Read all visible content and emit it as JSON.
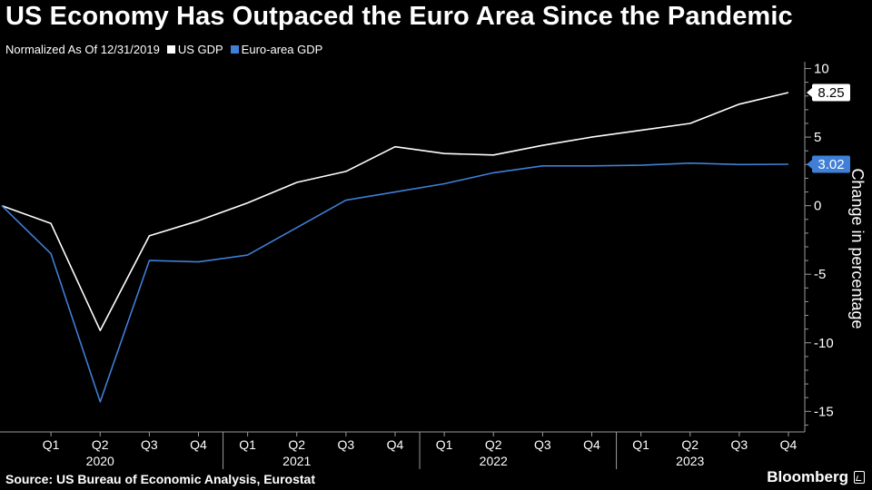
{
  "header": {
    "title": "US Economy Has Outpaced the Euro Area Since the Pandemic",
    "subtitle": "Normalized As Of 12/31/2019"
  },
  "legend": [
    {
      "name": "US GDP",
      "color": "#ffffff"
    },
    {
      "name": "Euro-area GDP",
      "color": "#3f7fd6"
    }
  ],
  "footer": {
    "source": "Source: US Bureau of Economic Analysis, Eurostat",
    "brand": "Bloomberg"
  },
  "chart_data": {
    "type": "line",
    "x": [
      "Q4 2019",
      "Q1 2020",
      "Q2 2020",
      "Q3 2020",
      "Q4 2020",
      "Q1 2021",
      "Q2 2021",
      "Q3 2021",
      "Q4 2021",
      "Q1 2022",
      "Q2 2022",
      "Q3 2022",
      "Q4 2022",
      "Q1 2023",
      "Q2 2023",
      "Q3 2023",
      "Q4 2023"
    ],
    "x_tick_labels": [
      "Q1",
      "Q2",
      "Q3",
      "Q4",
      "Q1",
      "Q2",
      "Q3",
      "Q4",
      "Q1",
      "Q2",
      "Q3",
      "Q4",
      "Q1",
      "Q2",
      "Q3",
      "Q4"
    ],
    "year_labels": [
      {
        "label": "2020",
        "quarter": "Q2 2020"
      },
      {
        "label": "2021",
        "quarter": "Q2 2021"
      },
      {
        "label": "2022",
        "quarter": "Q2 2022"
      },
      {
        "label": "2023",
        "quarter": "Q2 2023"
      }
    ],
    "series": [
      {
        "name": "US GDP",
        "color": "#ffffff",
        "values": [
          0,
          -1.3,
          -9.1,
          -2.2,
          -1.1,
          0.2,
          1.7,
          2.5,
          4.3,
          3.8,
          3.7,
          4.4,
          5.0,
          5.5,
          6.0,
          7.4,
          8.25
        ],
        "end_label": "8.25"
      },
      {
        "name": "Euro-area GDP",
        "color": "#3f7fd6",
        "values": [
          0,
          -3.5,
          -14.3,
          -4.0,
          -4.1,
          -3.6,
          -1.6,
          0.4,
          1.0,
          1.6,
          2.4,
          2.9,
          2.9,
          2.95,
          3.1,
          3.0,
          3.02
        ],
        "end_label": "3.02"
      }
    ],
    "ylabel": "Change in percentage",
    "y_ticks": [
      10,
      5,
      0,
      -5,
      -10,
      -15
    ],
    "ylim": [
      -16.5,
      10.5
    ],
    "grid": false,
    "legend_position": "top-left"
  }
}
